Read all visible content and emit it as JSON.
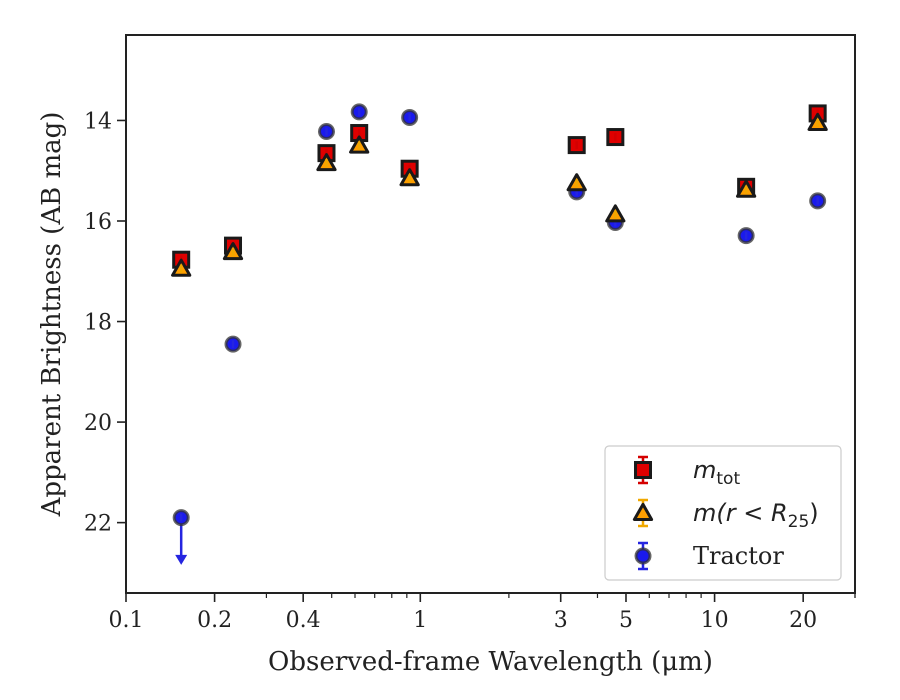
{
  "chart_data": {
    "type": "scatter",
    "title": "",
    "xlabel": "Observed-frame Wavelength (μm)",
    "ylabel": "Apparent Brightness (AB mag)",
    "xscale": "log",
    "xlim": [
      0.1,
      30
    ],
    "ylim": [
      23.4,
      12.3
    ],
    "y_inverted": true,
    "grid": false,
    "legend_position": "lower-right",
    "x_ticks": [
      {
        "value": 0.1,
        "label": "0.1"
      },
      {
        "value": 0.2,
        "label": "0.2"
      },
      {
        "value": 0.4,
        "label": "0.4"
      },
      {
        "value": 1,
        "label": "1"
      },
      {
        "value": 3,
        "label": "3"
      },
      {
        "value": 5,
        "label": "5"
      },
      {
        "value": 10,
        "label": "10"
      },
      {
        "value": 20,
        "label": "20"
      }
    ],
    "y_ticks": [
      {
        "value": 14,
        "label": "14"
      },
      {
        "value": 16,
        "label": "16"
      },
      {
        "value": 18,
        "label": "18"
      },
      {
        "value": 20,
        "label": "20"
      },
      {
        "value": 22,
        "label": "22"
      }
    ],
    "series": [
      {
        "name": "m_tot",
        "legend_label": "m",
        "legend_sub": "tot",
        "marker": "square",
        "color": "#e00000",
        "error_color": "#d40000",
        "x": [
          0.154,
          0.231,
          0.48,
          0.62,
          0.92,
          3.4,
          4.6,
          12.8,
          22.4
        ],
        "y": [
          16.77,
          16.49,
          14.65,
          14.25,
          14.96,
          14.49,
          14.33,
          15.32,
          13.86
        ]
      },
      {
        "name": "m(r < R_25)",
        "legend_label": "m(r < R",
        "legend_sub": "25",
        "legend_suffix": ")",
        "marker": "triangle",
        "color": "#ff9f00",
        "error_color": "#f0a800",
        "x": [
          0.154,
          0.231,
          0.48,
          0.62,
          0.92,
          3.4,
          4.6,
          12.8,
          22.4
        ],
        "y": [
          16.95,
          16.62,
          14.85,
          14.5,
          15.15,
          15.25,
          15.87,
          15.38,
          14.05
        ]
      },
      {
        "name": "Tractor",
        "legend_label": "Tractor",
        "marker": "circle",
        "color": "#1a1aee",
        "error_color": "#2525e0",
        "x": [
          0.154,
          0.231,
          0.48,
          0.62,
          0.92,
          3.4,
          4.6,
          12.8,
          22.4
        ],
        "y": [
          21.9,
          18.45,
          14.22,
          13.83,
          13.94,
          15.42,
          16.03,
          16.29,
          15.6
        ],
        "upper_limit_index": 0,
        "upper_limit_arrow_to": 22.8
      }
    ]
  }
}
